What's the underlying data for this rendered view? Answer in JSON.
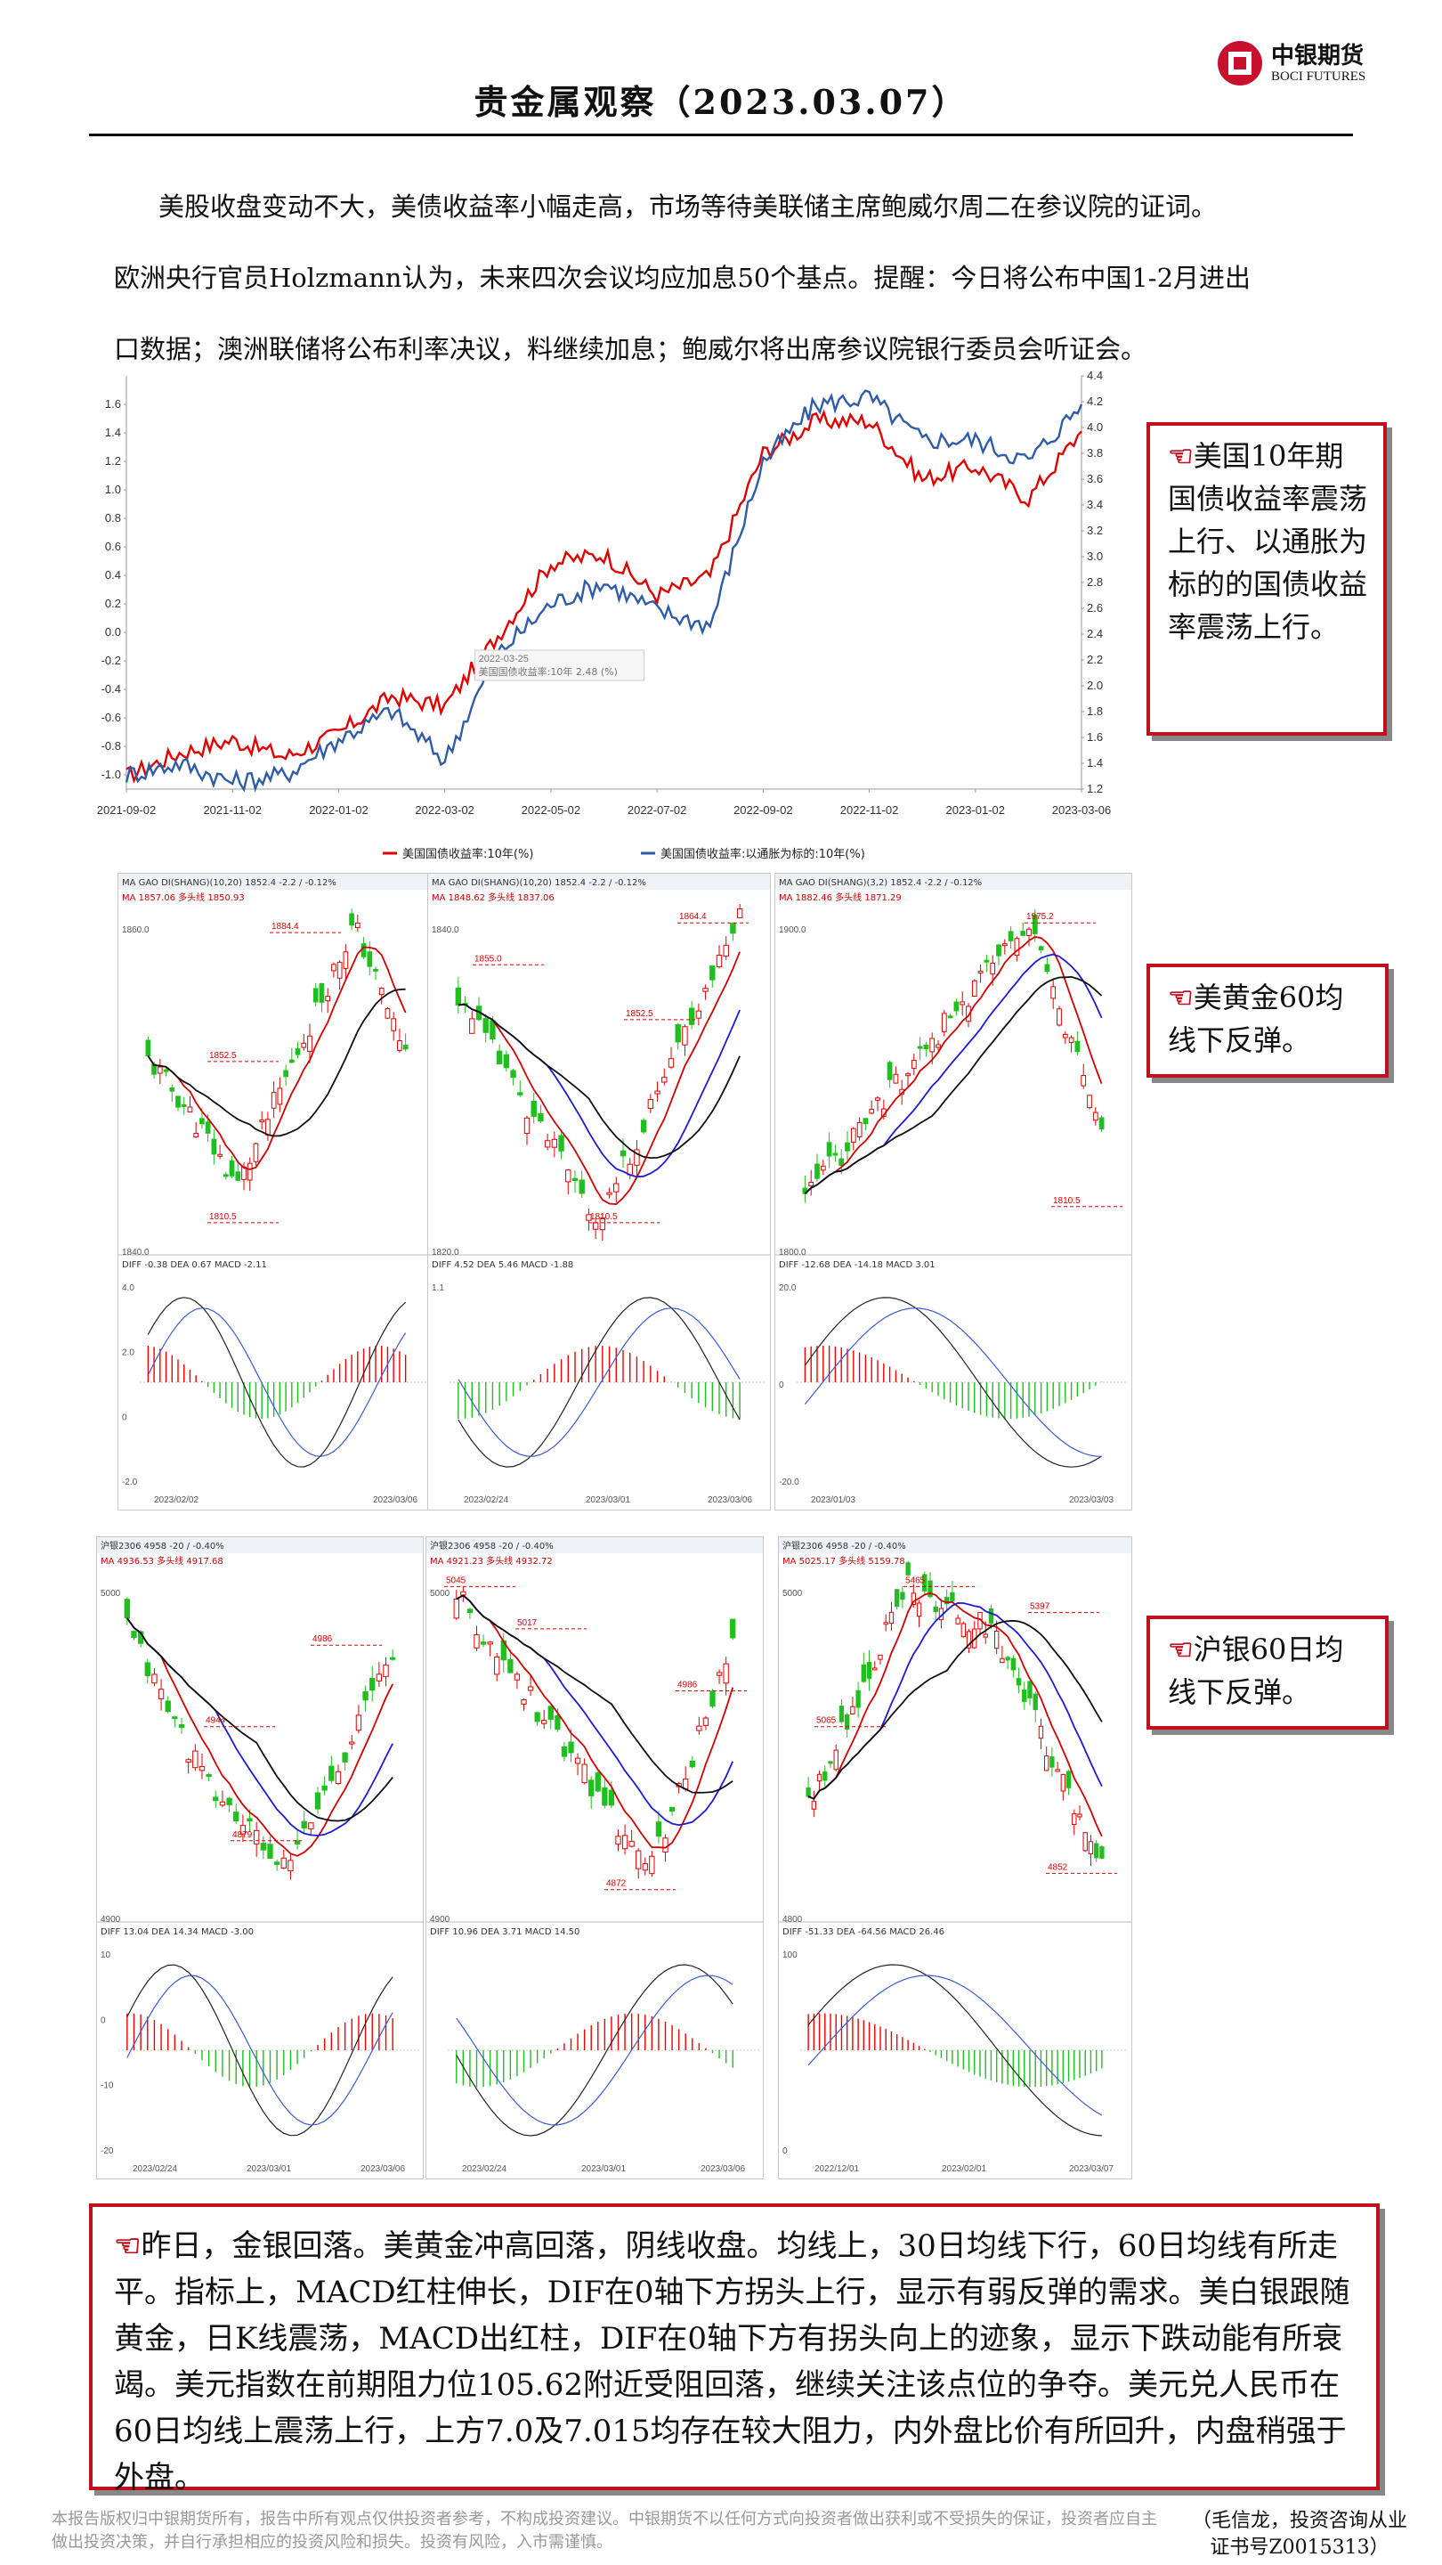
{
  "header": {
    "title": "贵金属观察（2023.03.07）",
    "logo_cn": "中银期货",
    "logo_en": "BOCI FUTURES"
  },
  "intro": {
    "lines": [
      "美股收盘变动不大，美债收益率小幅走高，市场等待美联储主席鲍威尔周二在参议院的证词。",
      "欧洲央行官员Holzmann认为，未来四次会议均应加息50个基点。提醒：今日将公布中国1-2月进出",
      "口数据；澳洲联储将公布利率决议，料继续加息；鲍威尔将出席参议院银行委员会听证会。"
    ]
  },
  "chart_data": [
    {
      "type": "line",
      "x": [
        "2021-09-02",
        "2021-10-02",
        "2021-11-02",
        "2021-12-02",
        "2022-01-02",
        "2022-02-02",
        "2022-03-02",
        "2022-04-02",
        "2022-05-02",
        "2022-06-02",
        "2022-07-02",
        "2022-08-02",
        "2022-09-02",
        "2022-10-02",
        "2022-11-02",
        "2022-12-02",
        "2023-01-02",
        "2023-02-02",
        "2023-03-06"
      ],
      "x_ticks": [
        "2021-09-02",
        "2021-11-02",
        "2022-01-02",
        "2022-03-02",
        "2022-05-02",
        "2022-07-02",
        "2022-09-02",
        "2022-11-02",
        "2023-01-02",
        "2023-03-06"
      ],
      "y_left_ticks": [
        "1.6",
        "1.4",
        "1.2",
        "1.0",
        "0.8",
        "0.6",
        "0.4",
        "0.2",
        "0.0",
        "-0.2",
        "-0.4",
        "-0.6",
        "-0.8",
        "-1.0"
      ],
      "y_right_ticks": [
        "4.4",
        "4.2",
        "4.0",
        "3.8",
        "3.6",
        "3.4",
        "3.2",
        "3.0",
        "2.8",
        "2.6",
        "2.4",
        "2.2",
        "2.0",
        "1.8",
        "1.6",
        "1.4",
        "1.2"
      ],
      "ylim_left": [
        -1.1,
        1.8
      ],
      "ylim_right": [
        1.2,
        4.4
      ],
      "series": [
        {
          "name": "美国国债收益率:10年(%)",
          "axis": "right",
          "color": "#e00000",
          "values": [
            1.3,
            1.48,
            1.58,
            1.45,
            1.63,
            1.92,
            1.84,
            2.39,
            2.95,
            3.02,
            2.7,
            2.85,
            3.8,
            4.05,
            4.05,
            3.6,
            3.7,
            3.45,
            3.97
          ]
        },
        {
          "name": "美国国债收益率:以通胀为标的:10年(%)",
          "axis": "left",
          "color": "#2e5ca8",
          "values": [
            -1.0,
            -0.92,
            -1.05,
            -1.0,
            -0.75,
            -0.55,
            -0.9,
            -0.15,
            0.2,
            0.35,
            0.15,
            0.05,
            1.2,
            1.6,
            1.65,
            1.35,
            1.35,
            1.2,
            1.6
          ]
        }
      ],
      "annotations": [
        "2022-03-25",
        "美国国债收益率:10年  2.48 (%)"
      ]
    },
    {
      "type": "candlestick",
      "label": "gold_panels",
      "panels": [
        {
          "header": "MA GAO DI(SHANG)(10,20)   1852.4  -2.2 / -0.12%",
          "ma_text": "MA  1857.06   多头线 1850.93",
          "marks": [
            "1884.4",
            "1852.5",
            "1810.5"
          ],
          "ticks": [
            "1860.0",
            "1840.0"
          ],
          "macd_text": "DIFF -0.38   DEA 0.67   MACD -2.11",
          "dates": [
            "2023/02/02",
            "2023/03/06"
          ],
          "macd_ticks": [
            "4.0",
            "2.0",
            "0",
            "-2.0"
          ]
        },
        {
          "header": "MA GAO DI(SHANG)(10,20)   1852.4  -2.2 / -0.12%",
          "ma_text": "MA  1848.62   多头线 1837.06",
          "marks": [
            "1855.0",
            "1852.5",
            "1864.4",
            "1810.5"
          ],
          "ticks": [
            "1840.0",
            "1820.0"
          ],
          "macd_text": "DIFF 4.52   DEA 5.46   MACD -1.88",
          "dates": [
            "2023/02/24",
            "2023/03/01",
            "2023/03/06"
          ],
          "macd_ticks": [
            "1.1"
          ]
        },
        {
          "header": "MA GAO DI(SHANG)(3,2)   1852.4  -2.2 / -0.12%",
          "ma_text": "MA  1882.46   多头线 1871.29",
          "marks": [
            "1975.2",
            "1810.5"
          ],
          "ticks": [
            "1900.0",
            "1800.0"
          ],
          "macd_text": "DIFF -12.68   DEA -14.18   MACD 3.01",
          "dates": [
            "2023/01/03",
            "2023/03/03"
          ],
          "macd_ticks": [
            "20.0",
            "0",
            "-20.0"
          ]
        }
      ]
    },
    {
      "type": "candlestick",
      "label": "silver_panels",
      "panels": [
        {
          "header": "沪银2306   4958  -20 / -0.40%",
          "ma_text": "MA  4936.53   多头线 4917.68",
          "marks": [
            "4986",
            "4944",
            "4879"
          ],
          "ticks": [
            "5000",
            "4900"
          ],
          "macd_text": "DIFF 13.04   DEA 14.34   MACD -3.00",
          "dates": [
            "2023/02/24",
            "2023/03/01",
            "2023/03/06"
          ],
          "macd_ticks": [
            "10",
            "0",
            "-10",
            "-20"
          ]
        },
        {
          "header": "沪银2306   4958  -20 / -0.40%",
          "ma_text": "MA  4921.23   多头线 4932.72",
          "marks": [
            "5045",
            "5017",
            "4986",
            "4872"
          ],
          "ticks": [
            "5000",
            "4900"
          ],
          "macd_text": "DIFF 10.96   DEA 3.71   MACD 14.50",
          "dates": [
            "2023/02/24",
            "2023/03/01",
            "2023/03/06"
          ],
          "macd_ticks": []
        },
        {
          "header": "沪银2306   4958  -20 / -0.40%",
          "ma_text": "MA  5025.17   多头线 5159.78",
          "marks": [
            "5465",
            "5397",
            "5065",
            "4852"
          ],
          "ticks": [
            "5000",
            "4800"
          ],
          "macd_text": "DIFF -51.33   DEA -64.56   MACD 26.46",
          "dates": [
            "2022/12/01",
            "2023/02/01",
            "2023/03/07"
          ],
          "macd_ticks": [
            "100",
            "0"
          ]
        }
      ]
    }
  ],
  "callouts": {
    "bond": "美国10年期国债收益率震荡上行、以通胀为标的的国债收益率震荡上行。",
    "gold": "美黄金60均线下反弹。",
    "silver": "沪银60日均线下反弹。",
    "hand_icon": "pointing-hand-icon"
  },
  "summary": {
    "text": "昨日，金银回落。美黄金冲高回落，阴线收盘。均线上，30日均线下行，60日均线有所走平。指标上，MACD红柱伸长，DIF在0轴下方拐头上行，显示有弱反弹的需求。美白银跟随黄金，日K线震荡，MACD出红柱，DIF在0轴下方有拐头向上的迹象，显示下跌动能有所衰竭。美元指数在前期阻力位105.62附近受阻回落，继续关注该点位的争夺。美元兑人民币在60日均线上震荡上行，上方7.0及7.015均存在较大阻力，内外盘比价有所回升，内盘稍强于外盘。"
  },
  "footer": {
    "disclaimer": "本报告版权归中银期货所有，报告中所有观点仅供投资者参考，不构成投资建议。中银期货不以任何方式向投资者做出获利或不受损失的保证，投资者应自主做出投资决策，并自行承担相应的投资风险和损失。投资有风险，入市需谨慎。",
    "analyst": "（毛信龙，投资咨询从业证书号Z0015313）"
  },
  "colors": {
    "accent_red": "#c0101e",
    "up_red": "#e00000",
    "down_green": "#1fbf1f",
    "ma_blue": "#1c1cd6",
    "ma_black": "#111111"
  }
}
